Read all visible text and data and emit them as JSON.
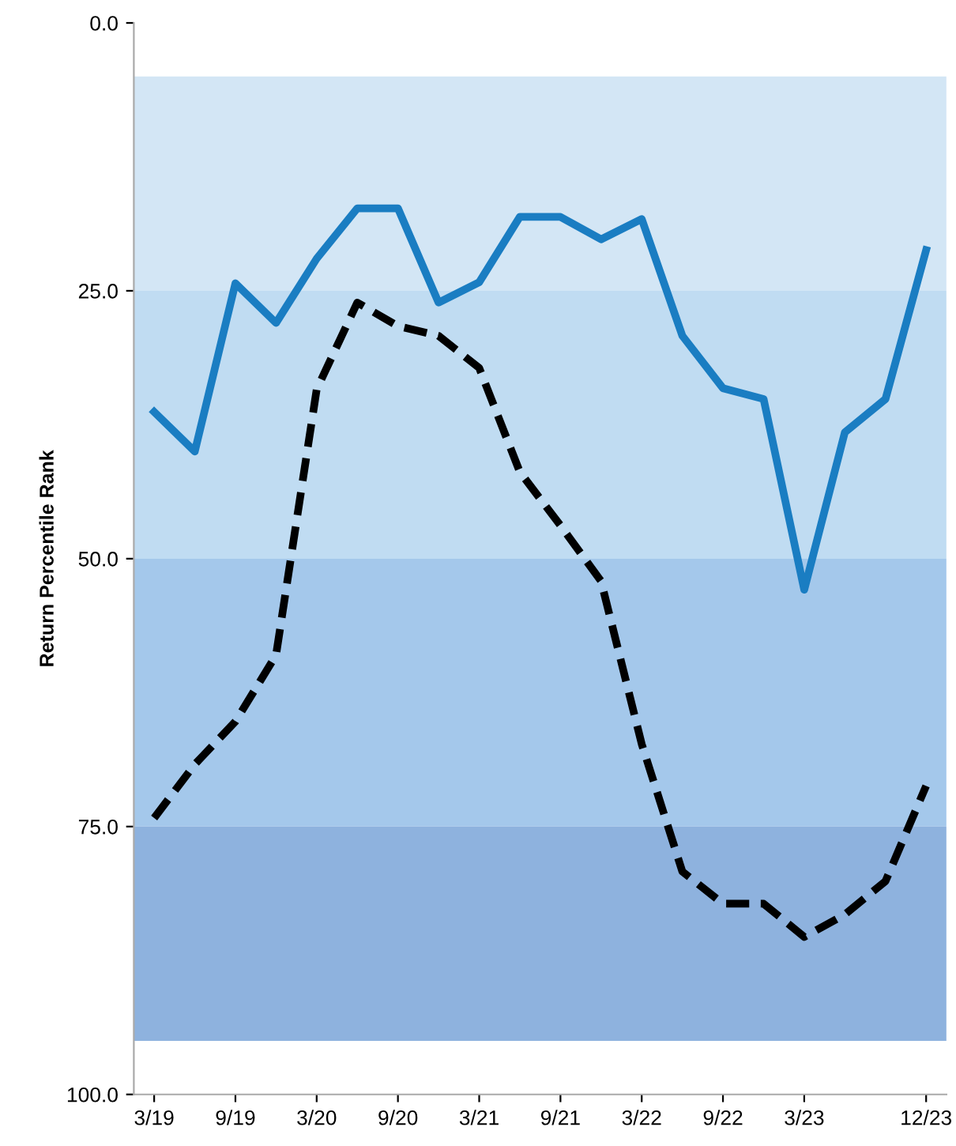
{
  "chart_data": {
    "type": "line",
    "ylabel": "Return Percentile Rank",
    "categories": [
      "3/19",
      null,
      "9/19",
      null,
      "3/20",
      null,
      "9/20",
      null,
      "3/21",
      null,
      "9/21",
      null,
      "3/22",
      null,
      "9/22",
      null,
      "3/23",
      null,
      null,
      "12/23"
    ],
    "series": [
      {
        "color": "#1a7dc2",
        "line_style": "solid",
        "values": [
          36.3,
          40.0,
          24.3,
          28.0,
          22.0,
          17.3,
          17.3,
          26.1,
          24.2,
          18.1,
          18.1,
          20.2,
          18.3,
          29.2,
          34.1,
          35.1,
          52.9,
          38.2,
          35.1,
          21.2
        ]
      },
      {
        "color": "#000000",
        "line_style": "dashed",
        "values": [
          74.2,
          69.2,
          65.2,
          59.0,
          34.2,
          26.1,
          28.3,
          29.2,
          32.2,
          41.9,
          46.9,
          52.1,
          67.3,
          79.2,
          82.2,
          82.2,
          85.3,
          83.2,
          80.1,
          71.2
        ]
      }
    ],
    "ylim": [
      100,
      0
    ],
    "yticks": [
      {
        "value": 0,
        "label": "0.0"
      },
      {
        "value": 25,
        "label": "25.0"
      },
      {
        "value": 50,
        "label": "50.0"
      },
      {
        "value": 75,
        "label": "75.0"
      },
      {
        "value": 100,
        "label": "100.0"
      }
    ],
    "bands": [
      {
        "axis": "y",
        "from": 5,
        "to": 25,
        "color": "#d3e6f5"
      },
      {
        "axis": "y",
        "from": 25,
        "to": 50,
        "color": "#c0dcf2"
      },
      {
        "axis": "y",
        "from": 50,
        "to": 75,
        "color": "#a4c8eb"
      },
      {
        "axis": "y",
        "from": 75,
        "to": 95,
        "color": "#8eb2de"
      }
    ],
    "grid": false
  }
}
